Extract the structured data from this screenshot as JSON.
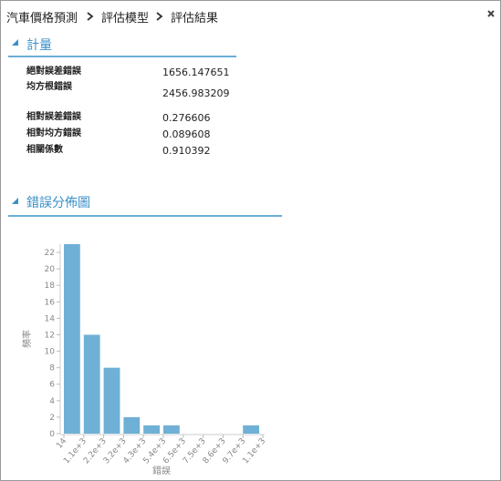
{
  "header": {
    "breadcrumb": [
      "汽車價格預測",
      "評估模型",
      "評估結果"
    ]
  },
  "metrics": {
    "title": "計量",
    "rows": [
      [
        "絕對誤差錯誤",
        "1656.147651"
      ],
      [
        "均方根錯誤",
        "2456.983209"
      ],
      [
        "相對誤差錯誤",
        "0.276606"
      ],
      [
        "相對均方錯誤",
        "0.089608"
      ],
      [
        "相關係數",
        "0.910392"
      ]
    ]
  },
  "chart_section": {
    "title": "錯誤分佈圖"
  },
  "chart_data": {
    "type": "histogram",
    "bins": [
      "14",
      "1.1e+3",
      "2.2e+3",
      "3.2e+3",
      "4.3e+3",
      "5.4e+3",
      "6.5e+3",
      "7.5e+3",
      "8.6e+3",
      "9.7e+3",
      "1.1e+3"
    ],
    "values": [
      23,
      12,
      8,
      2,
      1,
      1,
      0,
      0,
      0,
      1
    ],
    "color": "#6fb0d6",
    "ylim": [
      0,
      23
    ],
    "yticks": [
      0,
      2,
      4,
      6,
      8,
      10,
      12,
      14,
      16,
      18,
      20,
      22
    ],
    "xlabel": "錯誤",
    "ylabel": "頻率"
  }
}
